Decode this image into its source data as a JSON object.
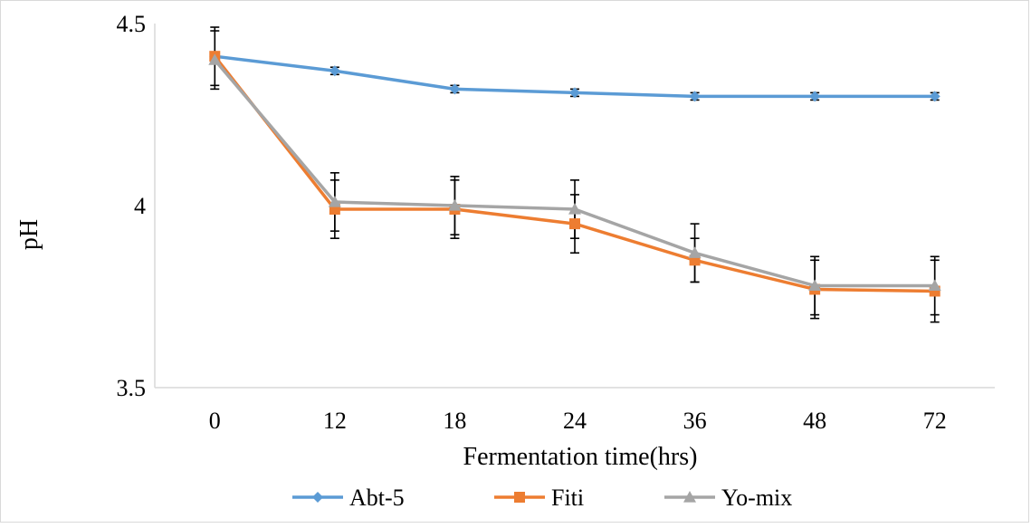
{
  "chart_data": {
    "type": "line",
    "title": "",
    "xlabel": "Fermentation  time(hrs)",
    "ylabel": "pH",
    "categories": [
      "0",
      "12",
      "18",
      "24",
      "36",
      "48",
      "72"
    ],
    "ylim": [
      3.5,
      4.5
    ],
    "yticks": [
      "3.5",
      "4",
      "4.5"
    ],
    "grid": false,
    "legend": "bottom",
    "series": [
      {
        "name": "Abt-5",
        "color": "#5b9bd5",
        "marker": "diamond",
        "values": [
          4.41,
          4.37,
          4.32,
          4.31,
          4.3,
          4.3,
          4.3
        ],
        "errors": [
          0.01,
          0.01,
          0.01,
          0.01,
          0.01,
          0.01,
          0.01
        ]
      },
      {
        "name": "Fiti",
        "color": "#ed7d31",
        "marker": "square",
        "values": [
          4.41,
          3.99,
          3.99,
          3.95,
          3.85,
          3.77,
          3.765
        ],
        "errors": [
          0.08,
          0.08,
          0.08,
          0.08,
          0.06,
          0.08,
          0.085
        ]
      },
      {
        "name": "Yo-mix",
        "color": "#a5a5a5",
        "marker": "triangle",
        "values": [
          4.4,
          4.01,
          4.0,
          3.99,
          3.87,
          3.78,
          3.78
        ],
        "errors": [
          0.08,
          0.08,
          0.08,
          0.08,
          0.08,
          0.08,
          0.08
        ]
      }
    ]
  }
}
